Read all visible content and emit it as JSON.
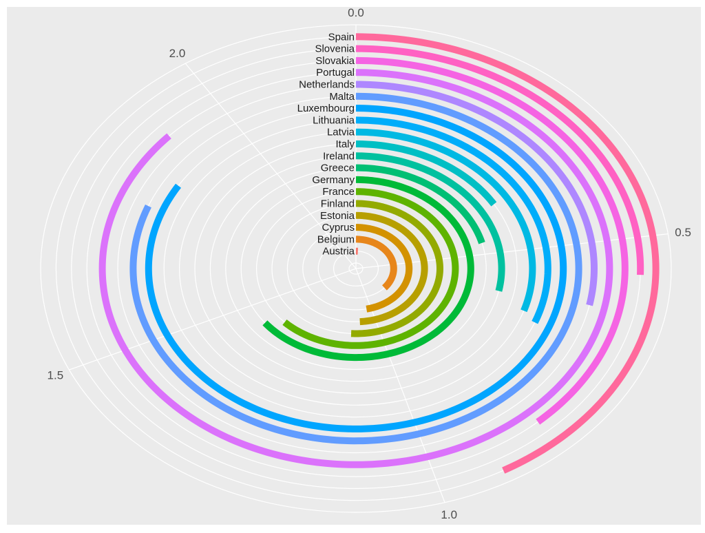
{
  "chart_data": {
    "type": "bar",
    "subtype": "radial-bar",
    "title": "",
    "xlabel": "",
    "ylabel": "",
    "grid": true,
    "background_color": "#ebebeb",
    "grid_color": "#ffffff",
    "value_axis": {
      "range": [
        0,
        2.2
      ],
      "ticks": [
        {
          "value": 0.0,
          "label": "0.0"
        },
        {
          "value": 0.5,
          "label": "0.5"
        },
        {
          "value": 1.0,
          "label": "1.0"
        },
        {
          "value": 1.5,
          "label": "1.5"
        },
        {
          "value": 2.0,
          "label": "2.0"
        }
      ]
    },
    "categories": [
      "Austria",
      "Belgium",
      "Cyprus",
      "Estonia",
      "Finland",
      "France",
      "Germany",
      "Greece",
      "Ireland",
      "Italy",
      "Latvia",
      "Lithuania",
      "Luxembourg",
      "Malta",
      "Netherlands",
      "Portugal",
      "Slovakia",
      "Slovenia",
      "Spain"
    ],
    "values": [
      0.03,
      0.8,
      1.03,
      1.08,
      1.12,
      1.38,
      1.42,
      0.46,
      0.62,
      0.36,
      0.66,
      0.68,
      1.84,
      1.78,
      0.62,
      1.91,
      0.84,
      0.56,
      0.92
    ],
    "colors": [
      "#f8766d",
      "#e7861b",
      "#d39200",
      "#b79f00",
      "#93aa00",
      "#5eb300",
      "#00ba38",
      "#00bf74",
      "#00c19f",
      "#00bfc4",
      "#00b9e3",
      "#00adfa",
      "#00a5ff",
      "#619cff",
      "#ae87ff",
      "#db72fb",
      "#f564e3",
      "#ff61c3",
      "#ff699c"
    ]
  }
}
